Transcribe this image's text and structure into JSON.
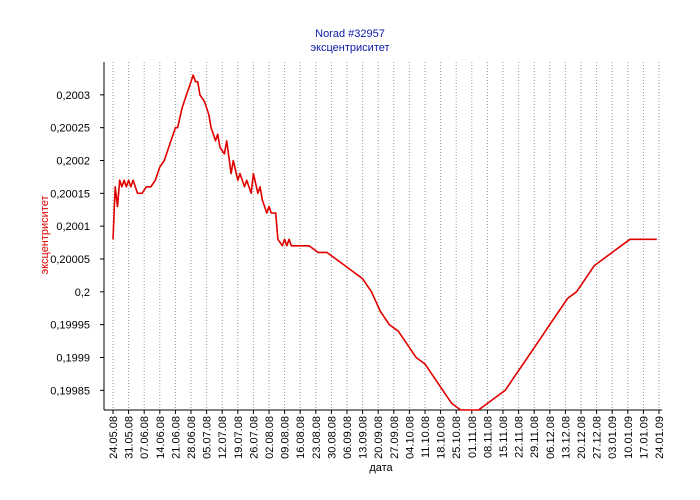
{
  "chart_data": {
    "type": "line",
    "title": "Norad #32957",
    "subtitle": "эксцентриситет",
    "ylabel": "эксцентриситет",
    "xlabel": "дата",
    "ylim": [
      0.19982,
      0.20035
    ],
    "y_ticks": [
      0.19985,
      0.1999,
      0.19995,
      0.2,
      0.20005,
      0.2001,
      0.20015,
      0.2002,
      0.20025,
      0.2003
    ],
    "y_tick_labels": [
      "0,19985",
      "0,1999",
      "0,19995",
      "0,2",
      "0,20005",
      "0,2001",
      "0,20015",
      "0,2002",
      "0,20025",
      "0,2003"
    ],
    "x_tick_labels": [
      "24.05.08",
      "31.05.08",
      "07.06.08",
      "14.06.08",
      "21.06.08",
      "28.06.08",
      "05.07.08",
      "12.07.08",
      "19.07.08",
      "26.07.08",
      "02.08.08",
      "09.08.08",
      "16.08.08",
      "23.08.08",
      "30.08.08",
      "06.09.08",
      "13.09.08",
      "20.09.08",
      "27.09.08",
      "04.10.08",
      "11.10.08",
      "18.10.08",
      "25.10.08",
      "01.11.08",
      "08.11.08",
      "15.11.08",
      "22.11.08",
      "29.11.08",
      "06.12.08",
      "13.12.08",
      "20.12.08",
      "27.12.08",
      "03.01.09",
      "10.01.09",
      "17.01.09",
      "24.01.09"
    ],
    "grid": {
      "vertical": true,
      "horizontal": false
    },
    "line_color": "#e00000",
    "series": [
      {
        "x": [
          "24.05.08",
          "25.05.08",
          "26.05.08",
          "27.05.08",
          "28.05.08",
          "29.05.08",
          "30.05.08",
          "31.05.08",
          "01.06.08",
          "02.06.08",
          "03.06.08",
          "04.06.08",
          "06.06.08",
          "08.06.08",
          "10.06.08",
          "12.06.08",
          "14.06.08",
          "16.06.08",
          "18.06.08",
          "20.06.08",
          "21.06.08",
          "22.06.08",
          "24.06.08",
          "26.06.08",
          "28.06.08",
          "29.06.08",
          "30.06.08",
          "01.07.08",
          "02.07.08",
          "04.07.08",
          "06.07.08",
          "07.07.08",
          "09.07.08",
          "10.07.08",
          "11.07.08",
          "13.07.08",
          "14.07.08",
          "16.07.08",
          "17.07.08",
          "19.07.08",
          "20.07.08",
          "22.07.08",
          "23.07.08",
          "25.07.08",
          "26.07.08",
          "28.07.08",
          "29.07.08",
          "30.07.08",
          "01.08.08",
          "02.08.08",
          "03.08.08",
          "05.08.08",
          "06.08.08",
          "08.08.08",
          "09.08.08",
          "10.08.08",
          "11.08.08",
          "12.08.08",
          "13.08.08",
          "14.08.08",
          "16.08.08",
          "20.08.08",
          "24.08.08",
          "28.08.08",
          "01.09.08",
          "05.09.08",
          "09.09.08",
          "13.09.08",
          "17.09.08",
          "21.09.08",
          "25.09.08",
          "29.09.08",
          "03.10.08",
          "07.10.08",
          "11.10.08",
          "15.10.08",
          "19.10.08",
          "23.10.08",
          "27.10.08",
          "31.10.08",
          "04.11.08",
          "08.11.08",
          "12.11.08",
          "16.11.08",
          "20.11.08",
          "24.11.08",
          "28.11.08",
          "02.12.08",
          "06.12.08",
          "10.12.08",
          "14.12.08",
          "18.12.08",
          "22.12.08",
          "26.12.08",
          "30.12.08",
          "03.01.09",
          "07.01.09",
          "11.01.09",
          "15.01.09",
          "19.01.09",
          "21.01.09",
          "23.01.09"
        ],
        "y": [
          0.20008,
          0.20016,
          0.20013,
          0.20017,
          0.20016,
          0.20017,
          0.20016,
          0.20017,
          0.20016,
          0.20017,
          0.20016,
          0.20015,
          0.20015,
          0.20016,
          0.20016,
          0.20017,
          0.20019,
          0.2002,
          0.20022,
          0.20024,
          0.20025,
          0.20025,
          0.20028,
          0.2003,
          0.20032,
          0.20033,
          0.20032,
          0.20032,
          0.2003,
          0.20029,
          0.20027,
          0.20025,
          0.20023,
          0.20024,
          0.20022,
          0.20021,
          0.20023,
          0.20018,
          0.2002,
          0.20017,
          0.20018,
          0.20016,
          0.20017,
          0.20015,
          0.20018,
          0.20015,
          0.20016,
          0.20014,
          0.20012,
          0.20013,
          0.20012,
          0.20012,
          0.20008,
          0.20007,
          0.20008,
          0.20007,
          0.20008,
          0.20007,
          0.20007,
          0.20007,
          0.20007,
          0.20007,
          0.20006,
          0.20006,
          0.20005,
          0.20004,
          0.20003,
          0.20002,
          0.2,
          0.19997,
          0.19995,
          0.19994,
          0.19992,
          0.1999,
          0.19989,
          0.19987,
          0.19985,
          0.19983,
          0.19982,
          0.19982,
          0.19982,
          0.19983,
          0.19984,
          0.19985,
          0.19987,
          0.19989,
          0.19991,
          0.19993,
          0.19995,
          0.19997,
          0.19999,
          0.2,
          0.20002,
          0.20004,
          0.20005,
          0.20006,
          0.20007,
          0.20008,
          0.20008,
          0.20008,
          0.20008,
          0.20008
        ]
      }
    ]
  }
}
